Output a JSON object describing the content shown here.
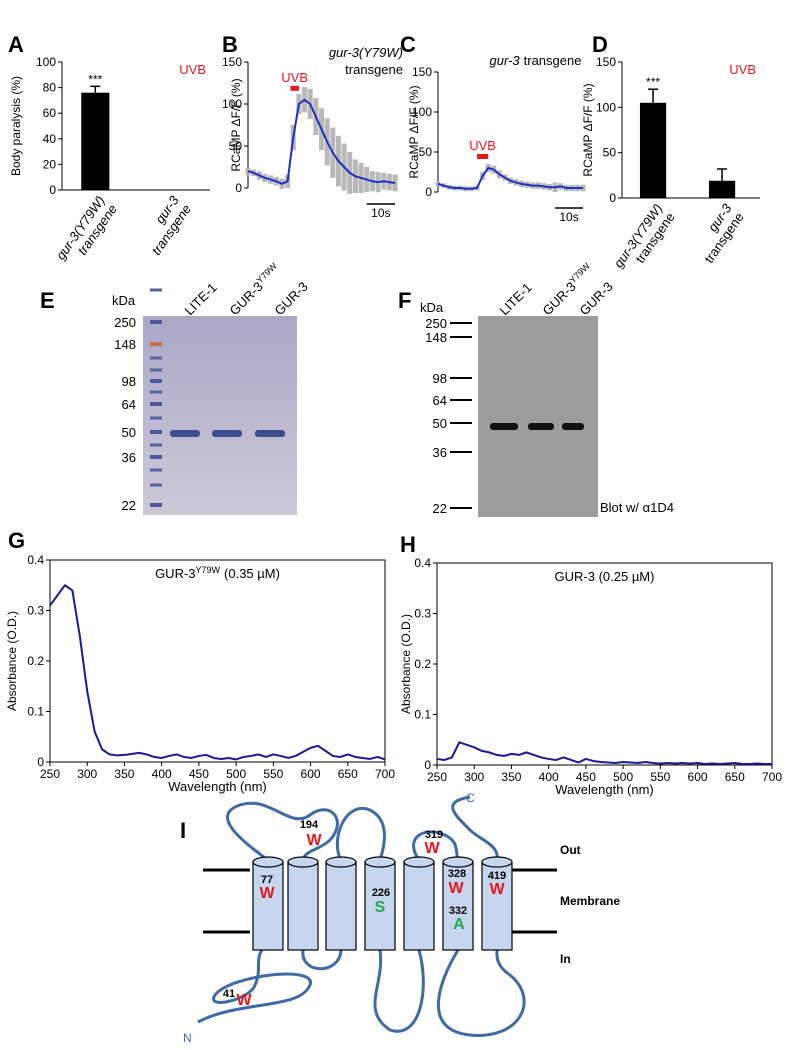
{
  "chart_data": [
    {
      "type": "bar",
      "panel": "A",
      "ylabel": "Body paralysis (%)",
      "ylim": [
        0,
        100
      ],
      "yticks": [
        0,
        20,
        40,
        60,
        80,
        100
      ],
      "categories": [
        [
          "gur-3(Y79W)",
          "transgene"
        ],
        [
          "gur-3",
          "transgene"
        ]
      ],
      "values": [
        76,
        0
      ],
      "errors": [
        5,
        0
      ],
      "significance": [
        "***",
        null
      ],
      "color": "#000000",
      "label": "UVB",
      "label_color": "#e8171c"
    },
    {
      "type": "line",
      "panel": "B",
      "title_lines": [
        "gur-3(Y79W)",
        "transgene"
      ],
      "ylabel": "RCaMP ΔF/F (%)",
      "ylim": [
        0,
        150
      ],
      "yticks": [
        0,
        50,
        100,
        150
      ],
      "xlim": [
        0,
        52
      ],
      "x": [
        0,
        2,
        4,
        6,
        8,
        10,
        12,
        14,
        16,
        18,
        20,
        22,
        24,
        26,
        28,
        30,
        32,
        34,
        36,
        38,
        40,
        42,
        44,
        46,
        48,
        50,
        52
      ],
      "series": [
        {
          "color": "#1f2fc0",
          "error_color": "#b8b8b8",
          "values": [
            20,
            18,
            15,
            12,
            10,
            8,
            5,
            8,
            60,
            100,
            105,
            100,
            85,
            70,
            55,
            42,
            32,
            25,
            18,
            14,
            12,
            10,
            8,
            7,
            8,
            7,
            6
          ],
          "errors": [
            4,
            4,
            5,
            5,
            5,
            5,
            6,
            8,
            15,
            12,
            15,
            18,
            22,
            25,
            28,
            30,
            30,
            28,
            25,
            20,
            18,
            15,
            12,
            12,
            10,
            10,
            10
          ]
        }
      ],
      "stimulus": {
        "label": "UVB",
        "start": 15,
        "end": 18,
        "color": "#e8171c"
      },
      "scale_bar": {
        "value": 10,
        "label": "10s"
      }
    },
    {
      "type": "line",
      "panel": "C",
      "title_lines": [
        "gur-3",
        "transgene"
      ],
      "title_inline": true,
      "ylabel": "RCaMP ΔF/F (%)",
      "ylim": [
        0,
        150
      ],
      "yticks": [
        0,
        50,
        100,
        150
      ],
      "xlim": [
        0,
        52
      ],
      "x": [
        0,
        2,
        4,
        6,
        8,
        10,
        12,
        14,
        16,
        18,
        20,
        22,
        24,
        26,
        28,
        30,
        32,
        34,
        36,
        38,
        40,
        42,
        44,
        46,
        48,
        50,
        52
      ],
      "series": [
        {
          "color": "#1f2fc0",
          "error_color": "#b8b8b8",
          "values": [
            10,
            8,
            6,
            5,
            5,
            4,
            4,
            5,
            20,
            30,
            28,
            22,
            18,
            14,
            12,
            10,
            9,
            8,
            8,
            7,
            6,
            6,
            7,
            5,
            5,
            5,
            5
          ],
          "errors": [
            3,
            3,
            3,
            3,
            3,
            3,
            3,
            3,
            5,
            5,
            5,
            5,
            4,
            4,
            4,
            4,
            4,
            4,
            4,
            4,
            4,
            6,
            4,
            4,
            4,
            4,
            4
          ]
        }
      ],
      "stimulus": {
        "label": "UVB",
        "start": 14,
        "end": 18,
        "color": "#e8171c"
      },
      "scale_bar": {
        "value": 10,
        "label": "10s"
      }
    },
    {
      "type": "bar",
      "panel": "D",
      "ylabel": "RCaMP ΔF/F (%)",
      "ylim": [
        0,
        150
      ],
      "yticks": [
        0,
        50,
        100,
        150
      ],
      "categories": [
        [
          "gur-3(Y79W)",
          "transgene"
        ],
        [
          "gur-3",
          "transgene"
        ]
      ],
      "values": [
        105,
        19
      ],
      "errors": [
        15,
        13
      ],
      "significance": [
        "***",
        null
      ],
      "color": "#000000",
      "label": "UVB",
      "label_color": "#e8171c"
    },
    {
      "type": "line",
      "panel": "G",
      "title": "GUR-3",
      "title_superscript": "Y79W",
      "title_suffix": "(0.35 µM)",
      "xlabel": "Wavelength (nm)",
      "ylabel": "Absorbance (O.D.)",
      "xlim": [
        250,
        700
      ],
      "xticks": [
        250,
        300,
        350,
        400,
        450,
        500,
        550,
        600,
        650,
        700
      ],
      "ylim": [
        0,
        0.4
      ],
      "yticks": [
        0,
        0.1,
        0.2,
        0.3,
        0.4
      ],
      "x": [
        250,
        260,
        270,
        280,
        290,
        300,
        310,
        320,
        330,
        340,
        350,
        360,
        370,
        380,
        390,
        400,
        410,
        420,
        430,
        440,
        450,
        460,
        470,
        480,
        490,
        500,
        510,
        520,
        530,
        540,
        550,
        560,
        570,
        580,
        590,
        600,
        610,
        620,
        630,
        640,
        650,
        660,
        670,
        680,
        690,
        700
      ],
      "series": [
        {
          "color": "#1a1a96",
          "values": [
            0.31,
            0.33,
            0.35,
            0.34,
            0.25,
            0.14,
            0.06,
            0.025,
            0.015,
            0.013,
            0.014,
            0.016,
            0.018,
            0.015,
            0.01,
            0.008,
            0.012,
            0.015,
            0.01,
            0.008,
            0.012,
            0.014,
            0.008,
            0.006,
            0.008,
            0.005,
            0.01,
            0.012,
            0.015,
            0.01,
            0.015,
            0.012,
            0.008,
            0.012,
            0.02,
            0.028,
            0.032,
            0.022,
            0.012,
            0.01,
            0.015,
            0.01,
            0.008,
            0.006,
            0.01,
            0.005
          ]
        }
      ]
    },
    {
      "type": "line",
      "panel": "H",
      "title": "GUR-3 (0.25 µM)",
      "xlabel": "Wavelength (nm)",
      "ylabel": "Absorbance (O.D.)",
      "xlim": [
        250,
        700
      ],
      "xticks": [
        250,
        300,
        350,
        400,
        450,
        500,
        550,
        600,
        650,
        700
      ],
      "ylim": [
        0,
        0.4
      ],
      "yticks": [
        0,
        0.1,
        0.2,
        0.3,
        0.4
      ],
      "x": [
        250,
        260,
        270,
        280,
        290,
        300,
        310,
        320,
        330,
        340,
        350,
        360,
        370,
        380,
        390,
        400,
        410,
        420,
        430,
        440,
        450,
        460,
        470,
        480,
        490,
        500,
        510,
        520,
        530,
        540,
        550,
        560,
        570,
        580,
        590,
        600,
        610,
        620,
        630,
        640,
        650,
        660,
        670,
        680,
        690,
        700
      ],
      "series": [
        {
          "color": "#1a1a96",
          "values": [
            0.012,
            0.01,
            0.015,
            0.045,
            0.04,
            0.035,
            0.028,
            0.025,
            0.02,
            0.018,
            0.022,
            0.02,
            0.025,
            0.02,
            0.015,
            0.012,
            0.01,
            0.015,
            0.01,
            0.005,
            0.012,
            0.008,
            0.006,
            0.005,
            0.004,
            0.006,
            0.005,
            0.004,
            0.006,
            0.004,
            0.003,
            0.004,
            0.003,
            0.004,
            0.003,
            0.004,
            0.002,
            0.003,
            0.002,
            0.003,
            0.004,
            0.002,
            0.002,
            0.003,
            0.002,
            0.002
          ]
        }
      ]
    }
  ],
  "gels": [
    {
      "panel": "E",
      "unit": "kDa",
      "markers": [
        250,
        148,
        98,
        64,
        50,
        36,
        22
      ],
      "lanes": [
        {
          "name": "LITE-1"
        },
        {
          "name": "GUR-3",
          "superscript": "Y79W"
        },
        {
          "name": "GUR-3"
        }
      ]
    },
    {
      "panel": "F",
      "unit": "kDa",
      "markers": [
        250,
        148,
        98,
        64,
        50,
        36,
        22
      ],
      "lanes": [
        {
          "name": "LITE-1"
        },
        {
          "name": "GUR-3",
          "superscript": "Y79W"
        },
        {
          "name": "GUR-3"
        }
      ],
      "note": "Blot w/ α1D4"
    }
  ],
  "diagram": {
    "panel": "I",
    "regions": [
      "Out",
      "Membrane",
      "In"
    ],
    "termini": [
      "C",
      "N"
    ],
    "residues": [
      {
        "number": 194,
        "letter": "W",
        "color": "#e8171c"
      },
      {
        "number": 319,
        "letter": "W",
        "color": "#e8171c"
      },
      {
        "number": 77,
        "letter": "W",
        "color": "#e8171c"
      },
      {
        "number": 226,
        "letter": "S",
        "color": "#22a84a"
      },
      {
        "number": 328,
        "letter": "W",
        "color": "#e8171c"
      },
      {
        "number": 332,
        "letter": "A",
        "color": "#22a84a"
      },
      {
        "number": 419,
        "letter": "W",
        "color": "#e8171c"
      },
      {
        "number": 41,
        "letter": "W",
        "color": "#e8171c"
      }
    ]
  }
}
